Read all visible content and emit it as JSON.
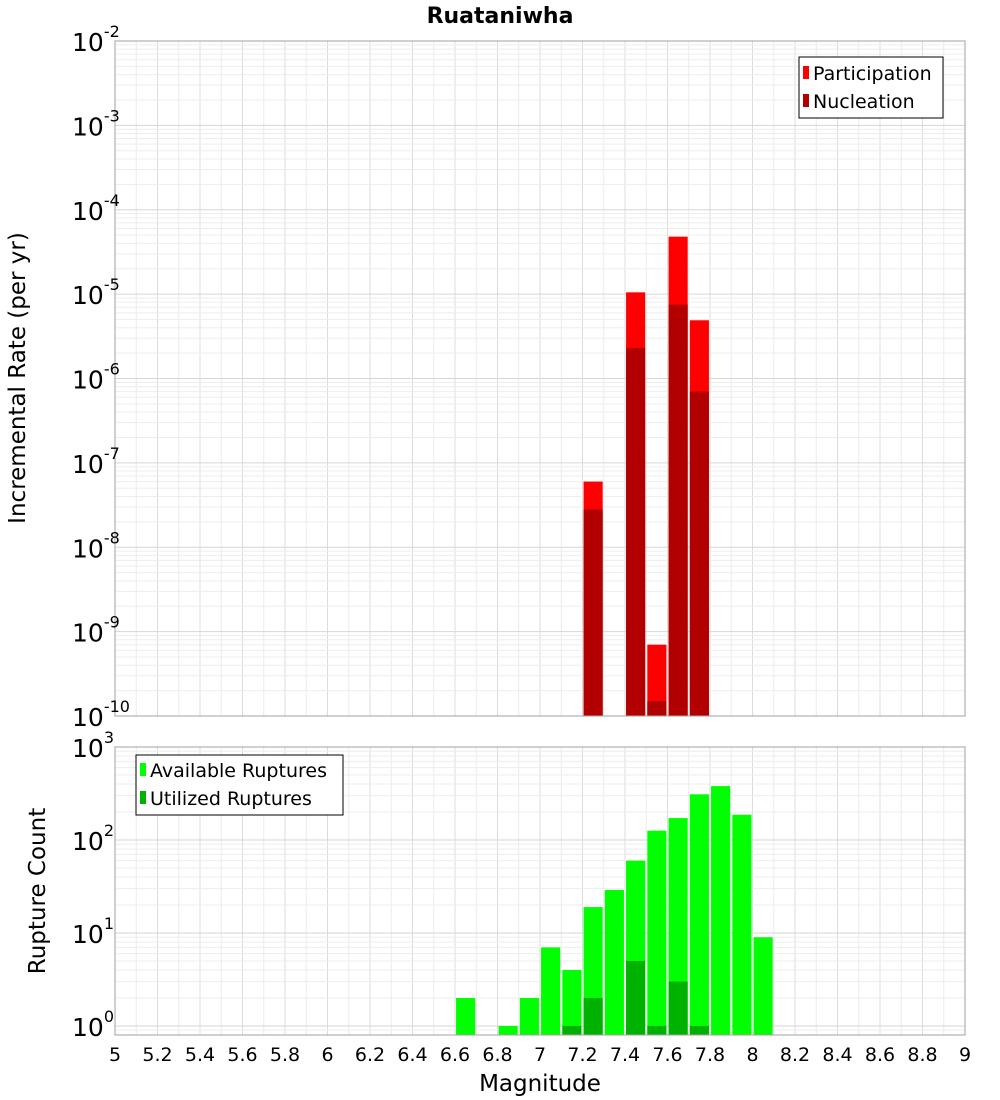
{
  "chart_data": [
    {
      "type": "bar",
      "title": "Ruataniwha",
      "xlabel": "Magnitude",
      "ylabel": "Incremental Rate (per yr)",
      "yscale": "log",
      "ylim": [
        1e-10,
        0.01
      ],
      "xlim": [
        5,
        9
      ],
      "grid": true,
      "legend_position": "top-right",
      "bin_width": 0.1,
      "y_ticks": [
        {
          "base": "10",
          "exp": "-10"
        },
        {
          "base": "10",
          "exp": "-9"
        },
        {
          "base": "10",
          "exp": "-8"
        },
        {
          "base": "10",
          "exp": "-7"
        },
        {
          "base": "10",
          "exp": "-6"
        },
        {
          "base": "10",
          "exp": "-5"
        },
        {
          "base": "10",
          "exp": "-4"
        },
        {
          "base": "10",
          "exp": "-3"
        },
        {
          "base": "10",
          "exp": "-2"
        }
      ],
      "series": [
        {
          "name": "Participation",
          "color": "#ff0000",
          "x": [
            7.25,
            7.45,
            7.55,
            7.65,
            7.75
          ],
          "values": [
            6e-08,
            1.05e-05,
            7e-10,
            4.8e-05,
            4.9e-06
          ]
        },
        {
          "name": "Nucleation",
          "color": "#b20000",
          "x": [
            7.25,
            7.45,
            7.55,
            7.65,
            7.75
          ],
          "values": [
            2.8e-08,
            2.3e-06,
            1.5e-10,
            7.5e-06,
            7e-07
          ]
        }
      ]
    },
    {
      "type": "bar",
      "title": "",
      "xlabel": "Magnitude",
      "ylabel": "Rupture Count",
      "yscale": "log",
      "ylim": [
        0.8,
        1000
      ],
      "xlim": [
        5,
        9
      ],
      "grid": true,
      "legend_position": "top-left",
      "bin_width": 0.1,
      "x_ticks": [
        "5",
        "5.2",
        "5.4",
        "5.6",
        "5.8",
        "6",
        "6.2",
        "6.4",
        "6.6",
        "6.8",
        "7",
        "7.2",
        "7.4",
        "7.6",
        "7.8",
        "8",
        "8.2",
        "8.4",
        "8.6",
        "8.8",
        "9"
      ],
      "y_ticks": [
        {
          "base": "10",
          "exp": "0"
        },
        {
          "base": "10",
          "exp": "1"
        },
        {
          "base": "10",
          "exp": "2"
        },
        {
          "base": "10",
          "exp": "3"
        }
      ],
      "series": [
        {
          "name": "Available Ruptures",
          "color": "#00ff00",
          "x": [
            6.65,
            6.85,
            6.95,
            7.05,
            7.15,
            7.25,
            7.35,
            7.45,
            7.55,
            7.65,
            7.75,
            7.85,
            7.95,
            8.05
          ],
          "values": [
            2,
            1,
            2,
            7,
            4,
            19,
            29,
            60,
            126,
            172,
            310,
            380,
            187,
            9
          ]
        },
        {
          "name": "Utilized Ruptures",
          "color": "#00b200",
          "x": [
            7.15,
            7.25,
            7.45,
            7.55,
            7.65,
            7.75
          ],
          "values": [
            1,
            2,
            5,
            1,
            3,
            1
          ]
        }
      ]
    }
  ]
}
